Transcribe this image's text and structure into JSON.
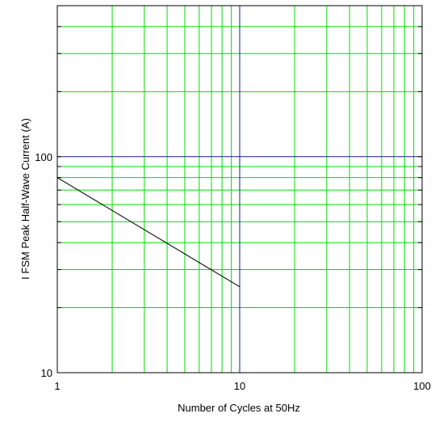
{
  "chart_data": {
    "type": "line",
    "title": "",
    "xlabel": "Number of Cycles at 50Hz",
    "ylabel": "I FSM   Peak Half-Wave Current   (A)",
    "x_scale": "log",
    "y_scale": "log",
    "xlim": [
      1,
      100
    ],
    "ylim": [
      10,
      500
    ],
    "x_tick_labels": [
      "1",
      "10",
      "100"
    ],
    "y_tick_labels": [
      "10",
      "100"
    ],
    "grid": true,
    "series": [
      {
        "x": [
          1,
          10
        ],
        "y": [
          80,
          25
        ]
      }
    ]
  },
  "colors": {
    "grid": "#00dd00",
    "decade_line": "#1a1aa0",
    "series": "#000000",
    "frame": "#000000"
  }
}
